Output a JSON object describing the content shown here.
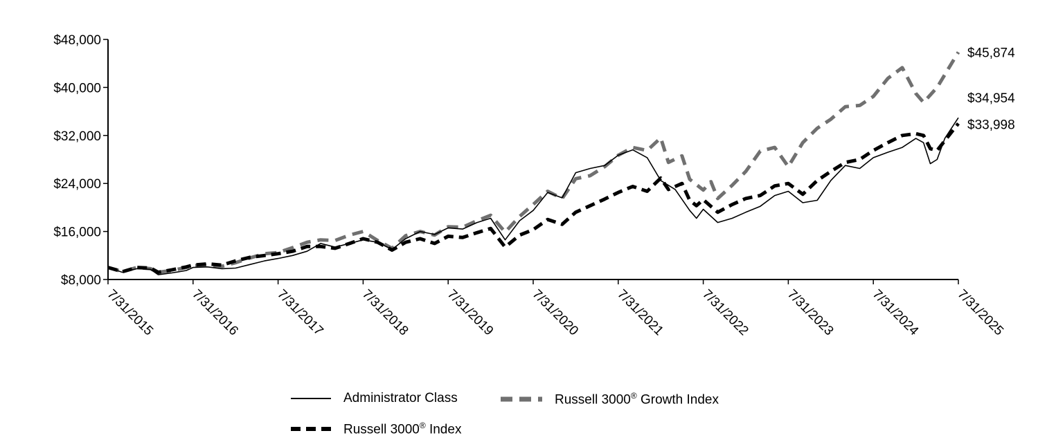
{
  "chart_data": {
    "type": "line",
    "title": "",
    "xlabel": "",
    "ylabel": "",
    "x_ticks": [
      "7/31/2015",
      "7/31/2016",
      "7/31/2017",
      "7/31/2018",
      "7/31/2019",
      "7/31/2020",
      "7/31/2021",
      "7/31/2022",
      "7/31/2023",
      "7/31/2024",
      "7/31/2025"
    ],
    "y_ticks": [
      "$8,000",
      "$16,000",
      "$24,000",
      "$32,000",
      "$40,000",
      "$48,000"
    ],
    "ylim": [
      8000,
      48000
    ],
    "xlim": [
      2015.58,
      2025.58
    ],
    "grid": false,
    "legend_position": "bottom",
    "series": [
      {
        "name": "Administrator Class",
        "style": "solid-thin",
        "color": "#000000",
        "end_label": "$34,954",
        "points": [
          [
            2015.58,
            10000
          ],
          [
            2015.75,
            9200
          ],
          [
            2015.92,
            9800
          ],
          [
            2016.08,
            9700
          ],
          [
            2016.17,
            8800
          ],
          [
            2016.33,
            9100
          ],
          [
            2016.5,
            9500
          ],
          [
            2016.58,
            10000
          ],
          [
            2016.75,
            10100
          ],
          [
            2016.92,
            9800
          ],
          [
            2017.08,
            9900
          ],
          [
            2017.25,
            10500
          ],
          [
            2017.42,
            11100
          ],
          [
            2017.58,
            11500
          ],
          [
            2017.75,
            12000
          ],
          [
            2017.92,
            12700
          ],
          [
            2018.08,
            14000
          ],
          [
            2018.25,
            13400
          ],
          [
            2018.42,
            14000
          ],
          [
            2018.58,
            14600
          ],
          [
            2018.75,
            14200
          ],
          [
            2018.92,
            13000
          ],
          [
            2019.08,
            14800
          ],
          [
            2019.25,
            16000
          ],
          [
            2019.42,
            15500
          ],
          [
            2019.58,
            16600
          ],
          [
            2019.75,
            16400
          ],
          [
            2019.92,
            17500
          ],
          [
            2020.08,
            18200
          ],
          [
            2020.25,
            14600
          ],
          [
            2020.42,
            17800
          ],
          [
            2020.58,
            19500
          ],
          [
            2020.75,
            22500
          ],
          [
            2020.92,
            21600
          ],
          [
            2021.08,
            25800
          ],
          [
            2021.25,
            26500
          ],
          [
            2021.42,
            27000
          ],
          [
            2021.58,
            28700
          ],
          [
            2021.75,
            29600
          ],
          [
            2021.92,
            28300
          ],
          [
            2022.08,
            24500
          ],
          [
            2022.25,
            23000
          ],
          [
            2022.42,
            19500
          ],
          [
            2022.5,
            18200
          ],
          [
            2022.58,
            19700
          ],
          [
            2022.75,
            17500
          ],
          [
            2022.92,
            18200
          ],
          [
            2023.08,
            19200
          ],
          [
            2023.25,
            20200
          ],
          [
            2023.42,
            22000
          ],
          [
            2023.58,
            22700
          ],
          [
            2023.75,
            20800
          ],
          [
            2023.92,
            21200
          ],
          [
            2024.08,
            24500
          ],
          [
            2024.25,
            27000
          ],
          [
            2024.42,
            26500
          ],
          [
            2024.58,
            28300
          ],
          [
            2024.75,
            29200
          ],
          [
            2024.92,
            30000
          ],
          [
            2025.08,
            31500
          ],
          [
            2025.17,
            30800
          ],
          [
            2025.25,
            27300
          ],
          [
            2025.33,
            28000
          ],
          [
            2025.42,
            31500
          ],
          [
            2025.58,
            34954
          ]
        ]
      },
      {
        "name": "Russell 3000® Growth Index",
        "style": "dashed-gray",
        "color": "#707070",
        "end_label": "$45,874",
        "points": [
          [
            2015.58,
            10000
          ],
          [
            2015.75,
            9300
          ],
          [
            2015.92,
            10000
          ],
          [
            2016.08,
            9800
          ],
          [
            2016.17,
            9200
          ],
          [
            2016.33,
            9500
          ],
          [
            2016.5,
            10000
          ],
          [
            2016.58,
            10300
          ],
          [
            2016.75,
            10400
          ],
          [
            2016.92,
            10200
          ],
          [
            2017.08,
            10800
          ],
          [
            2017.25,
            11600
          ],
          [
            2017.42,
            12300
          ],
          [
            2017.58,
            12500
          ],
          [
            2017.75,
            13300
          ],
          [
            2017.92,
            14200
          ],
          [
            2018.08,
            14600
          ],
          [
            2018.25,
            14500
          ],
          [
            2018.42,
            15400
          ],
          [
            2018.58,
            16000
          ],
          [
            2018.75,
            14500
          ],
          [
            2018.92,
            13200
          ],
          [
            2019.08,
            15300
          ],
          [
            2019.25,
            16000
          ],
          [
            2019.42,
            15400
          ],
          [
            2019.58,
            16800
          ],
          [
            2019.75,
            16700
          ],
          [
            2019.92,
            17800
          ],
          [
            2020.08,
            18700
          ],
          [
            2020.25,
            15900
          ],
          [
            2020.42,
            18500
          ],
          [
            2020.58,
            20500
          ],
          [
            2020.75,
            22700
          ],
          [
            2020.92,
            21500
          ],
          [
            2021.08,
            24800
          ],
          [
            2021.25,
            25300
          ],
          [
            2021.42,
            26800
          ],
          [
            2021.58,
            28700
          ],
          [
            2021.75,
            30000
          ],
          [
            2021.92,
            29500
          ],
          [
            2022.08,
            31600
          ],
          [
            2022.17,
            27500
          ],
          [
            2022.33,
            28600
          ],
          [
            2022.42,
            24700
          ],
          [
            2022.58,
            22900
          ],
          [
            2022.67,
            24300
          ],
          [
            2022.75,
            21500
          ],
          [
            2022.92,
            23700
          ],
          [
            2023.08,
            26000
          ],
          [
            2023.25,
            29400
          ],
          [
            2023.42,
            30000
          ],
          [
            2023.58,
            26800
          ],
          [
            2023.75,
            30800
          ],
          [
            2023.92,
            33200
          ],
          [
            2024.08,
            34700
          ],
          [
            2024.25,
            36800
          ],
          [
            2024.42,
            37000
          ],
          [
            2024.58,
            38500
          ],
          [
            2024.75,
            41500
          ],
          [
            2024.92,
            43300
          ],
          [
            2025.08,
            39000
          ],
          [
            2025.17,
            37500
          ],
          [
            2025.33,
            40000
          ],
          [
            2025.58,
            45874
          ]
        ]
      },
      {
        "name": "Russell 3000® Index",
        "style": "dashed-black",
        "color": "#000000",
        "end_label": "$33,998",
        "points": [
          [
            2015.58,
            10000
          ],
          [
            2015.75,
            9300
          ],
          [
            2015.92,
            10000
          ],
          [
            2016.08,
            9900
          ],
          [
            2016.17,
            9200
          ],
          [
            2016.33,
            9600
          ],
          [
            2016.5,
            10100
          ],
          [
            2016.58,
            10400
          ],
          [
            2016.75,
            10600
          ],
          [
            2016.92,
            10400
          ],
          [
            2017.08,
            11100
          ],
          [
            2017.25,
            11700
          ],
          [
            2017.42,
            12000
          ],
          [
            2017.58,
            12300
          ],
          [
            2017.75,
            12700
          ],
          [
            2017.92,
            13500
          ],
          [
            2018.08,
            13500
          ],
          [
            2018.25,
            13200
          ],
          [
            2018.42,
            14000
          ],
          [
            2018.58,
            14800
          ],
          [
            2018.75,
            14200
          ],
          [
            2018.92,
            12900
          ],
          [
            2019.08,
            14200
          ],
          [
            2019.25,
            14800
          ],
          [
            2019.42,
            14000
          ],
          [
            2019.58,
            15200
          ],
          [
            2019.75,
            15000
          ],
          [
            2019.92,
            15800
          ],
          [
            2020.08,
            16500
          ],
          [
            2020.25,
            13400
          ],
          [
            2020.42,
            15400
          ],
          [
            2020.58,
            16300
          ],
          [
            2020.75,
            18000
          ],
          [
            2020.92,
            17200
          ],
          [
            2021.08,
            19200
          ],
          [
            2021.25,
            20300
          ],
          [
            2021.42,
            21400
          ],
          [
            2021.58,
            22500
          ],
          [
            2021.75,
            23500
          ],
          [
            2021.92,
            22700
          ],
          [
            2022.08,
            24900
          ],
          [
            2022.17,
            23000
          ],
          [
            2022.33,
            24000
          ],
          [
            2022.42,
            21200
          ],
          [
            2022.5,
            20300
          ],
          [
            2022.58,
            21300
          ],
          [
            2022.75,
            19200
          ],
          [
            2022.92,
            20500
          ],
          [
            2023.08,
            21500
          ],
          [
            2023.25,
            22000
          ],
          [
            2023.42,
            23600
          ],
          [
            2023.58,
            24000
          ],
          [
            2023.75,
            22200
          ],
          [
            2023.92,
            24500
          ],
          [
            2024.08,
            26000
          ],
          [
            2024.25,
            27500
          ],
          [
            2024.42,
            28000
          ],
          [
            2024.58,
            29500
          ],
          [
            2024.75,
            30800
          ],
          [
            2024.92,
            32000
          ],
          [
            2025.08,
            32300
          ],
          [
            2025.17,
            32000
          ],
          [
            2025.25,
            29800
          ],
          [
            2025.33,
            29500
          ],
          [
            2025.58,
            33998
          ]
        ]
      }
    ]
  },
  "legend": {
    "items": [
      {
        "name_main": "Administrator Class",
        "name_sup": ""
      },
      {
        "name_main": "Russell 3000",
        "name_sup": "®",
        "name_rest": " Growth Index"
      },
      {
        "name_main": "Russell 3000",
        "name_sup": "®",
        "name_rest": " Index"
      }
    ]
  }
}
